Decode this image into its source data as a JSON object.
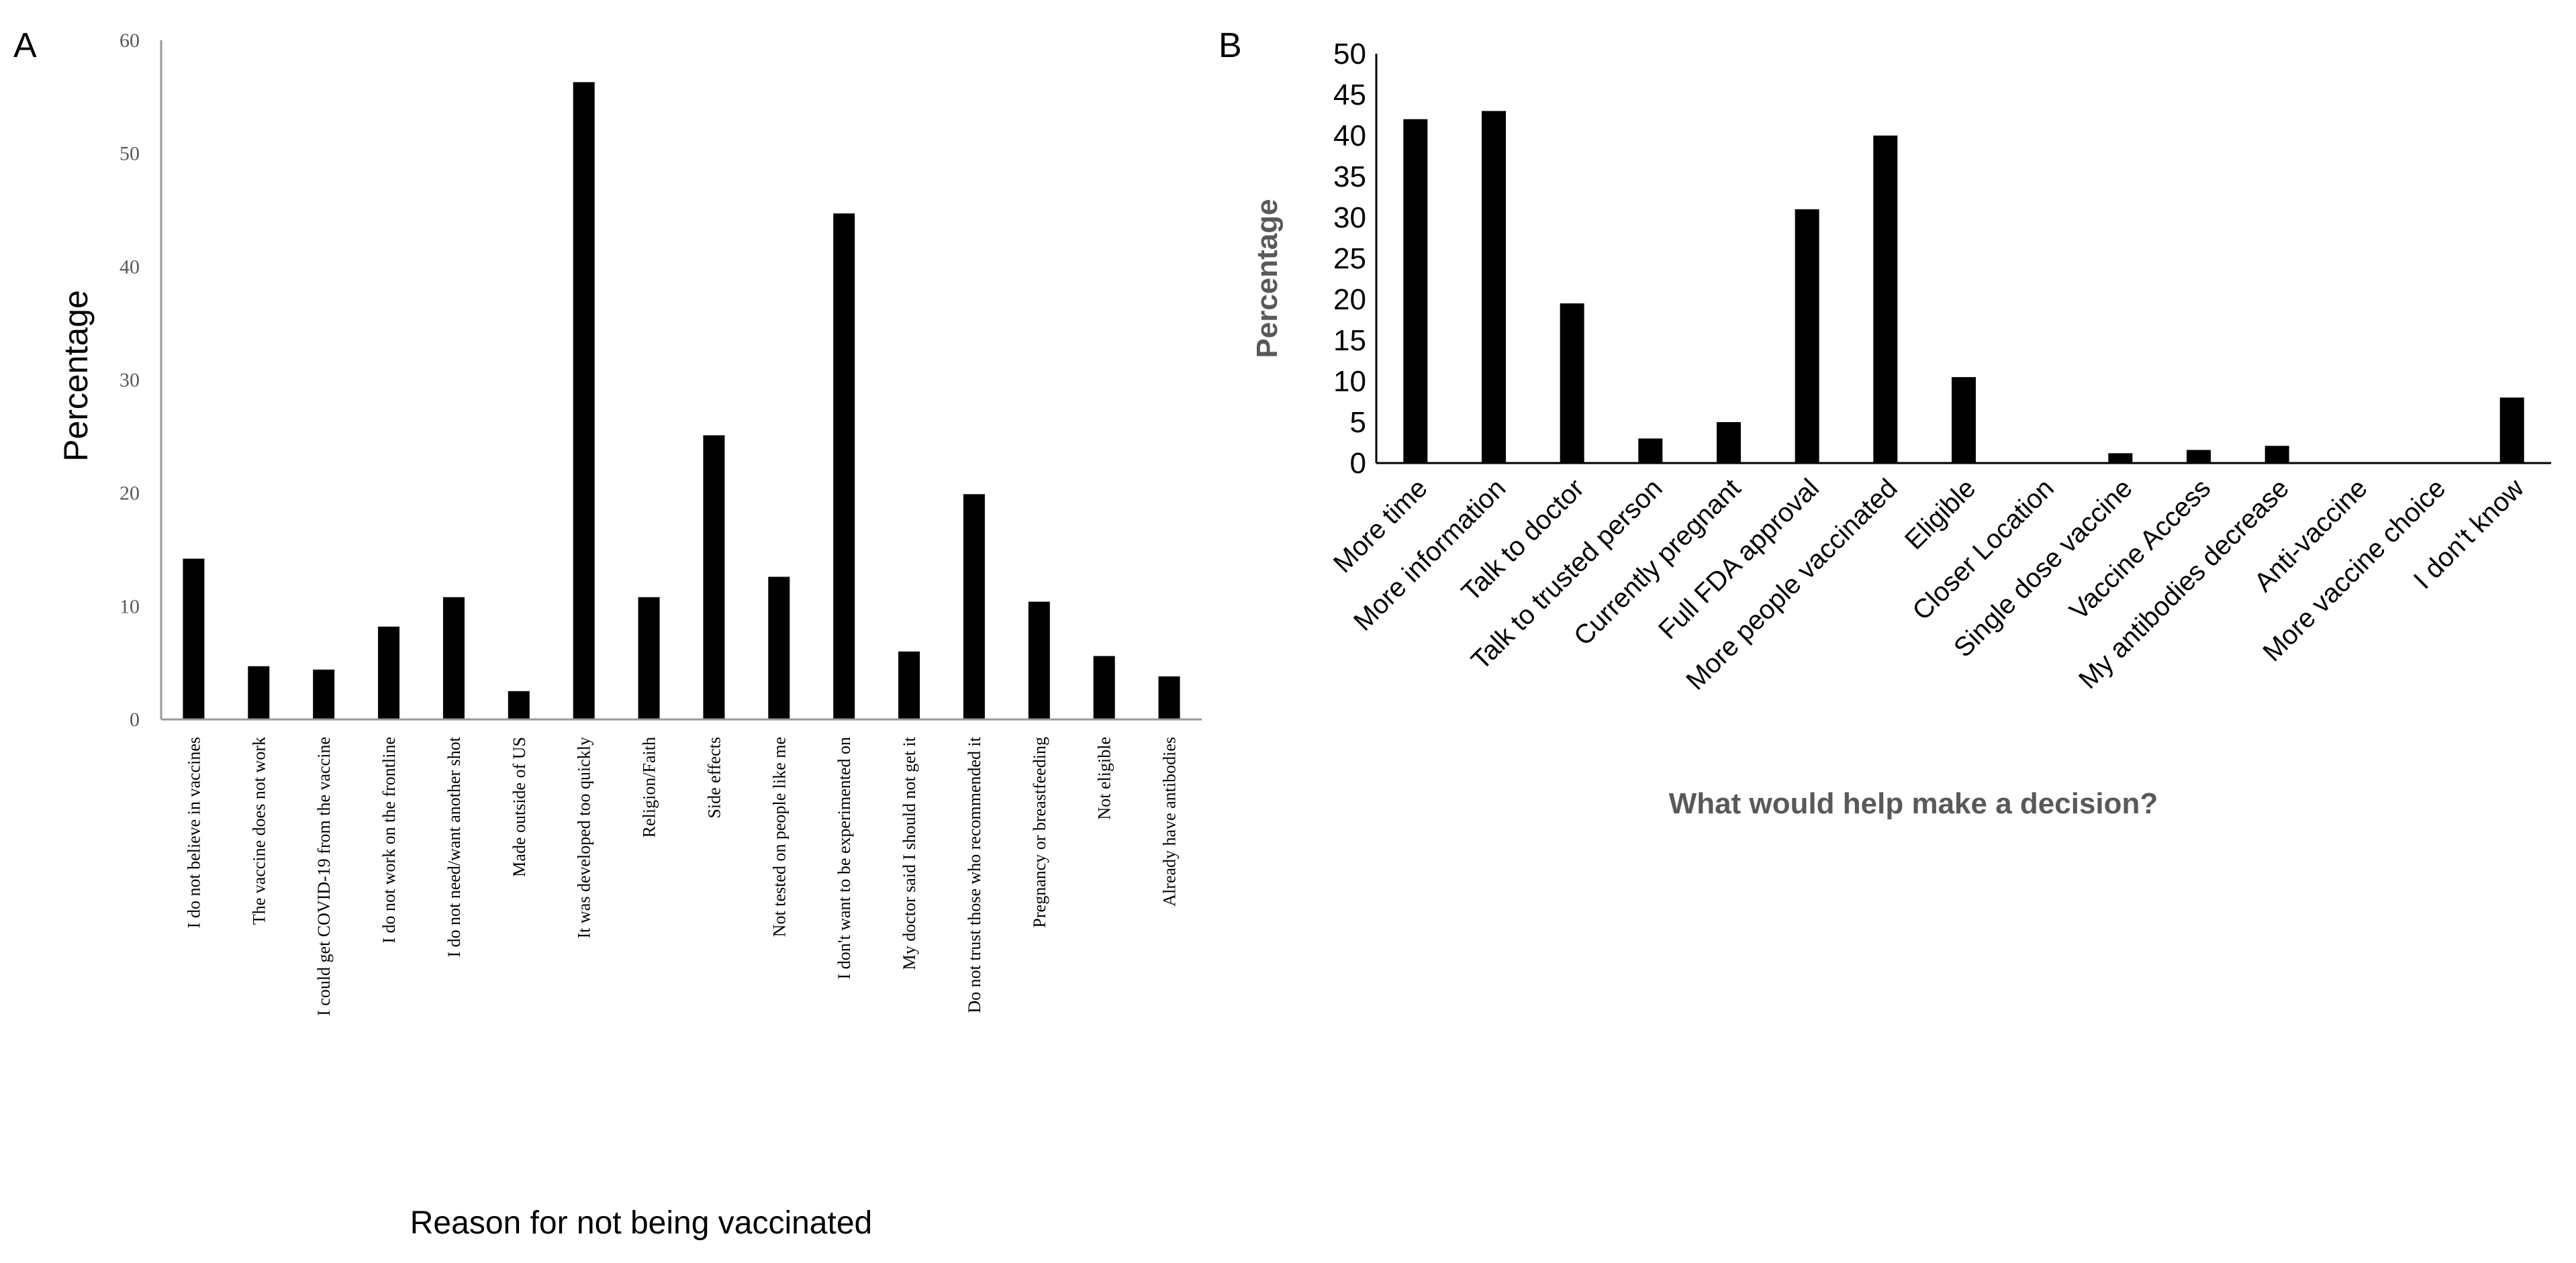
{
  "chart_data": [
    {
      "panel": "A",
      "type": "bar",
      "title": "",
      "xlabel": "Reason for not being vaccinated",
      "ylabel": "Percentage",
      "ylim": [
        0,
        60
      ],
      "yticks": [
        0,
        10,
        20,
        30,
        40,
        50,
        60
      ],
      "grid": false,
      "categories": [
        "I do not believe in vaccines",
        "The vaccine does not work",
        "I could get COVID-19 from the vaccine",
        "I do not work on the frontline",
        "I do not need/want another shot",
        "Made outside of US",
        "It was developed too quickly",
        "Religion/Faith",
        "Side effects",
        "Not tested on people like me",
        "I don't want to be experimented on",
        "My doctor said I should not get it",
        "Do not trust those who recommended it",
        "Pregnancy or breastfeeding",
        "Not eligible",
        "Already have antibodies"
      ],
      "values": [
        14.2,
        4.7,
        4.4,
        8.2,
        10.8,
        2.5,
        56.3,
        10.8,
        25.1,
        12.6,
        44.7,
        6.0,
        19.9,
        10.4,
        5.6,
        3.8
      ]
    },
    {
      "panel": "B",
      "type": "bar",
      "title": "",
      "xlabel": "What would help make a decision?",
      "ylabel": "Percentage",
      "ylim": [
        0,
        50
      ],
      "yticks": [
        0,
        5,
        10,
        15,
        20,
        25,
        30,
        35,
        40,
        45,
        50
      ],
      "grid": false,
      "categories": [
        "More time",
        "More information",
        "Talk to doctor",
        "Talk to trusted person",
        "Currently pregnant",
        "Full FDA approval",
        "More people vaccinated",
        "Eligible",
        "Closer Location",
        "Single dose vaccine",
        "Vaccine Access",
        "My antibodies decrease",
        "Anti-vaccine",
        "More vaccine choice",
        "I don't know"
      ],
      "values": [
        42,
        43,
        19.5,
        3,
        5,
        31,
        40,
        10.5,
        0,
        1.2,
        1.6,
        2.1,
        0,
        0,
        8
      ]
    }
  ]
}
